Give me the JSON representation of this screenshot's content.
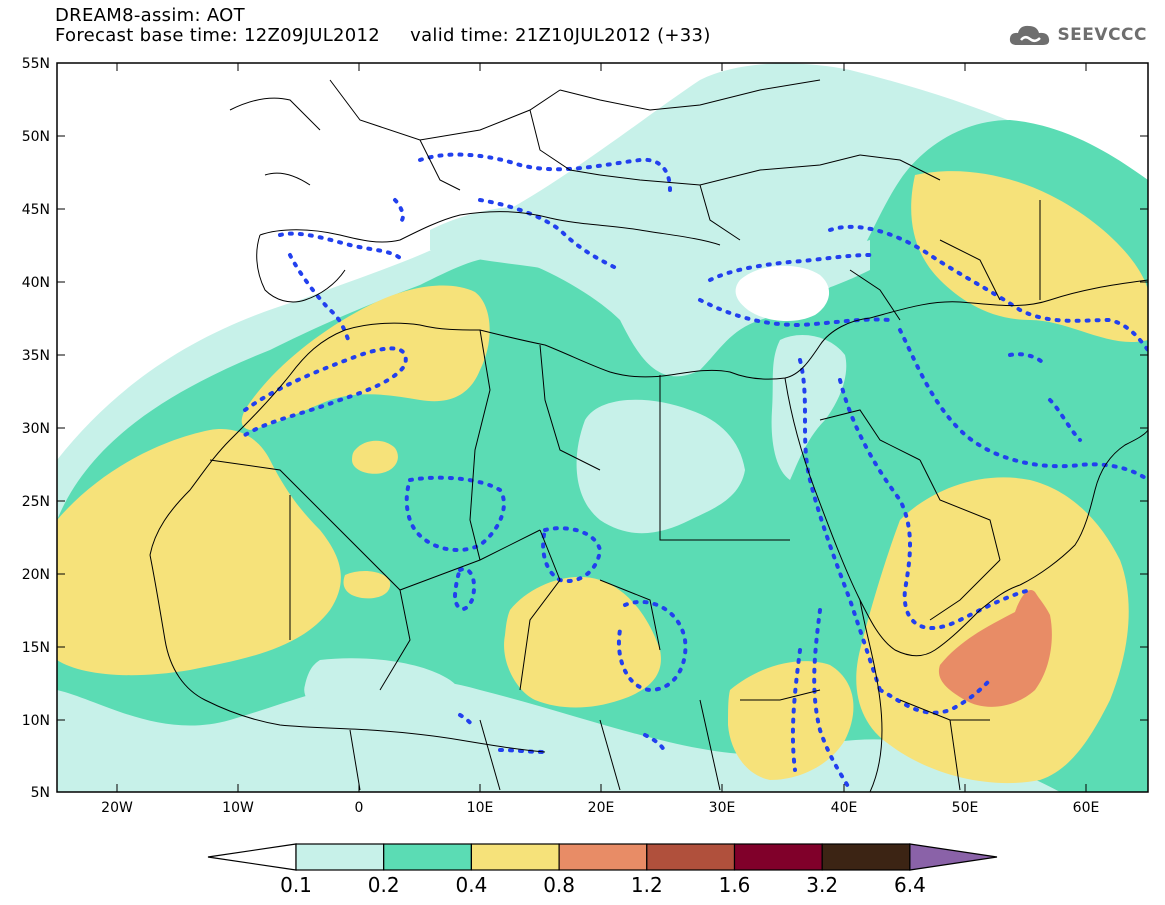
{
  "title": {
    "line1": "DREAM8-assim: AOT",
    "line2": "Forecast base time: 12Z09JUL2012     valid time: 21Z10JUL2012 (+33)"
  },
  "logo": {
    "text": "SEEVCCC",
    "icon": "cloud-icon"
  },
  "map": {
    "lat_ticks": [
      "55N",
      "50N",
      "45N",
      "40N",
      "35N",
      "30N",
      "25N",
      "20N",
      "15N",
      "10N",
      "5N"
    ],
    "lon_ticks": [
      "20W",
      "10W",
      "0",
      "10E",
      "20E",
      "30E",
      "40E",
      "50E",
      "60E"
    ],
    "extent": {
      "lon_min": -25,
      "lon_max": 65,
      "lat_min": 5,
      "lat_max": 55
    }
  },
  "legend": {
    "labels": [
      "0.1",
      "0.2",
      "0.4",
      "0.8",
      "1.2",
      "1.6",
      "3.2",
      "6.4"
    ],
    "colors": [
      "#ffffff",
      "#c7f1e9",
      "#5bdcb4",
      "#f6e27a",
      "#e88c66",
      "#b0503c",
      "#80002a",
      "#3c2414",
      "#8a62a8"
    ]
  }
}
